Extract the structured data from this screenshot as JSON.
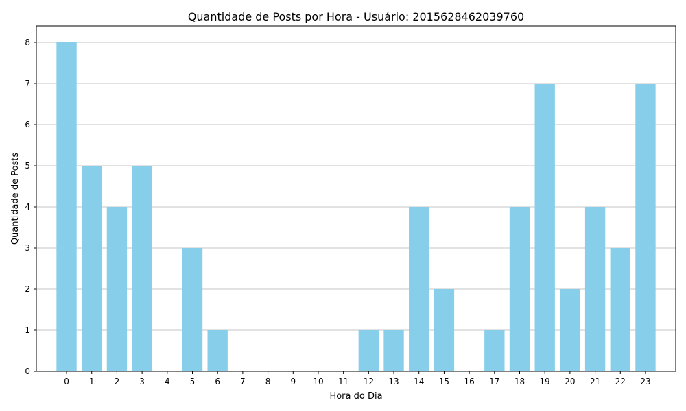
{
  "chart_data": {
    "type": "bar",
    "title": "Quantidade de Posts por Hora - Usuário: 2015628462039760",
    "xlabel": "Hora do Dia",
    "ylabel": "Quantidade de Posts",
    "categories": [
      "0",
      "1",
      "2",
      "3",
      "4",
      "5",
      "6",
      "7",
      "8",
      "9",
      "10",
      "11",
      "12",
      "13",
      "14",
      "15",
      "16",
      "17",
      "18",
      "19",
      "20",
      "21",
      "22",
      "23"
    ],
    "values": [
      8,
      5,
      4,
      5,
      0,
      3,
      1,
      0,
      0,
      0,
      0,
      0,
      1,
      1,
      4,
      2,
      0,
      1,
      4,
      7,
      2,
      4,
      3,
      7
    ],
    "ylim": [
      0,
      8.4
    ],
    "yticks": [
      "0",
      "1",
      "2",
      "3",
      "4",
      "5",
      "6",
      "7",
      "8"
    ],
    "grid": "y",
    "bar_color": "#87ceeb",
    "grid_color": "#b0b0b0"
  }
}
